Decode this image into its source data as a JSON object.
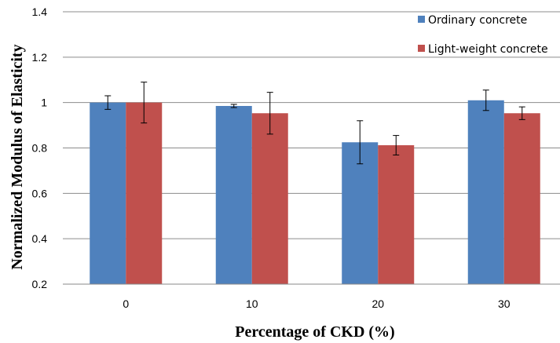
{
  "chart_data": {
    "type": "bar",
    "categories": [
      "0",
      "10",
      "20",
      "30"
    ],
    "series": [
      {
        "name": "Ordinary concrete",
        "color": "#4F81BD",
        "values": [
          1.0,
          0.985,
          0.825,
          1.01
        ],
        "errors": [
          0.03,
          0.007,
          0.095,
          0.045
        ]
      },
      {
        "name": "Light-weight concrete",
        "color": "#C0504D",
        "values": [
          1.0,
          0.953,
          0.812,
          0.953
        ],
        "errors": [
          0.09,
          0.092,
          0.043,
          0.028
        ]
      }
    ],
    "xlabel": "Percentage of CKD (%)",
    "ylabel": "Normalized Modulus of Elasticity",
    "ylim": [
      0.2,
      1.4
    ],
    "yticks": [
      "0.2",
      "0.4",
      "0.6",
      "0.8",
      "1",
      "1.2",
      "1.4"
    ],
    "grid": true,
    "legend_position": "top-right"
  }
}
